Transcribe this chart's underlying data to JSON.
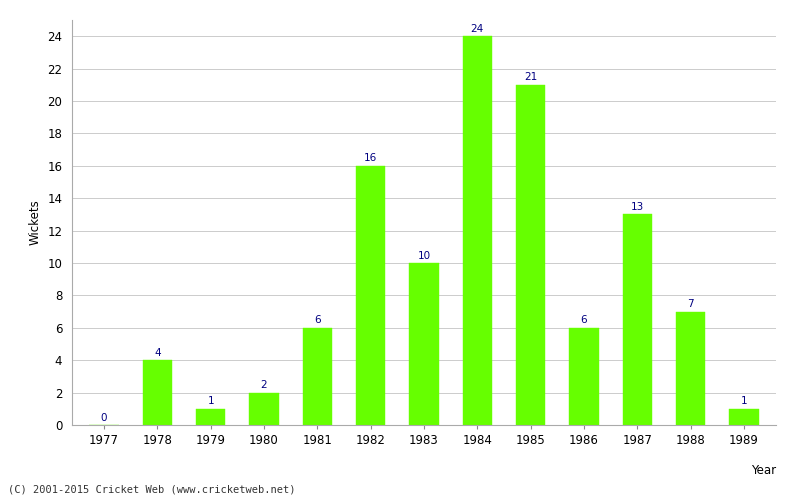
{
  "years": [
    "1977",
    "1978",
    "1979",
    "1980",
    "1981",
    "1982",
    "1983",
    "1984",
    "1985",
    "1986",
    "1987",
    "1988",
    "1989"
  ],
  "wickets": [
    0,
    4,
    1,
    2,
    6,
    16,
    10,
    24,
    21,
    6,
    13,
    7,
    1
  ],
  "bar_color": "#66ff00",
  "bar_edge_color": "#66ff00",
  "label_color": "#000080",
  "ylabel": "Wickets",
  "ylim": [
    0,
    25
  ],
  "yticks": [
    0,
    2,
    4,
    6,
    8,
    10,
    12,
    14,
    16,
    18,
    20,
    22,
    24
  ],
  "grid_color": "#cccccc",
  "bg_color": "#ffffff",
  "footnote": "(C) 2001-2015 Cricket Web (www.cricketweb.net)",
  "label_fontsize": 7.5,
  "axis_fontsize": 8.5,
  "footnote_fontsize": 7.5,
  "bar_width": 0.55
}
